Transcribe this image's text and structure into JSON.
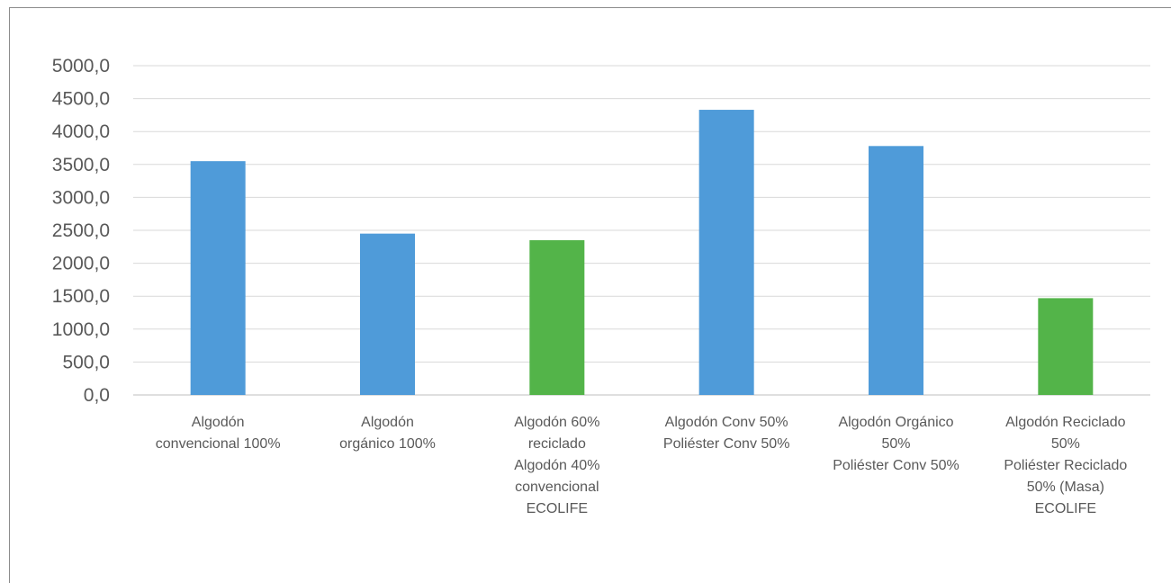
{
  "chart_data": {
    "type": "bar",
    "categories": [
      "Algodón convencional 100%",
      "Algodón orgánico 100%",
      "Algodón 60% reciclado Algodón 40% convencional ECOLIFE",
      "Algodón Conv 50% Poliéster Conv 50%",
      "Algodón Orgánico 50% Poliéster Conv 50%",
      "Algodón Reciclado 50% Poliéster Reciclado 50% (Masa) ECOLIFE"
    ],
    "category_lines": [
      [
        "Algodón",
        "convencional 100%"
      ],
      [
        "Algodón",
        "orgánico 100%"
      ],
      [
        "Algodón 60%",
        "reciclado",
        "Algodón 40%",
        "convencional",
        "ECOLIFE"
      ],
      [
        "Algodón Conv 50%",
        "Poliéster Conv 50%"
      ],
      [
        "Algodón Orgánico",
        "50%",
        "Poliéster Conv 50%"
      ],
      [
        "Algodón Reciclado",
        "50%",
        "Poliéster Reciclado",
        "50% (Masa)",
        "ECOLIFE"
      ]
    ],
    "values": [
      3550,
      2450,
      2350,
      4330,
      3780,
      1470
    ],
    "bar_colors": [
      "#4f9bd9",
      "#4f9bd9",
      "#53b449",
      "#4f9bd9",
      "#4f9bd9",
      "#53b449"
    ],
    "ylim": [
      0,
      5000
    ],
    "yticks": [
      0,
      500,
      1000,
      1500,
      2000,
      2500,
      3000,
      3500,
      4000,
      4500,
      5000
    ],
    "ytick_labels": [
      "0,0",
      "500,0",
      "1000,0",
      "1500,0",
      "2000,0",
      "2500,0",
      "3000,0",
      "3500,0",
      "4000,0",
      "4500,0",
      "5000,0"
    ],
    "title": "",
    "xlabel": "",
    "ylabel": "",
    "grid": true,
    "legend": "none"
  }
}
